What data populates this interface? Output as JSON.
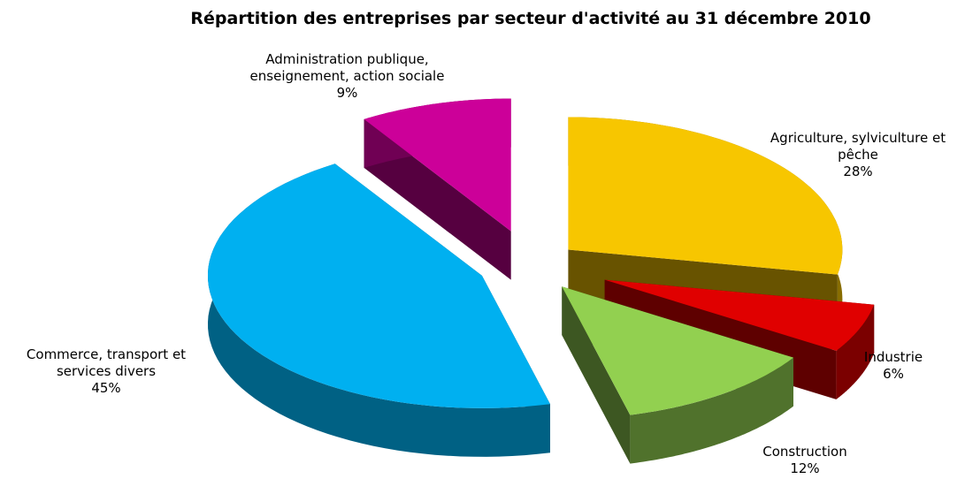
{
  "chart_data": {
    "type": "pie",
    "title": "Répartition des entreprises par secteur d'activité au 31 décembre 2010",
    "categories": [
      "Agriculture, sylviculture et pêche",
      "Industrie",
      "Construction",
      "Commerce, transport et services divers",
      "Administration publique, enseignement, action sociale"
    ],
    "values": [
      28,
      6,
      12,
      45,
      9
    ],
    "value_labels": [
      "28%",
      "6%",
      "12%",
      "45%",
      "9%"
    ],
    "colors": [
      "#f7c600",
      "#e00000",
      "#92d050",
      "#00b0f0",
      "#cc0099"
    ]
  }
}
